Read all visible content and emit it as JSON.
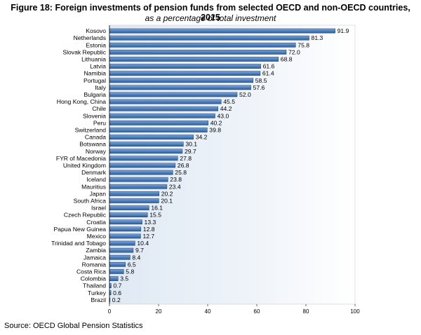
{
  "header": {
    "title": "Figure 18: Foreign investments of pension funds from selected OECD and non-OECD countries, 2015",
    "subtitle": "as a percentage of total investment"
  },
  "footer": {
    "source": "Source: OECD Global Pension Statistics"
  },
  "chart_data": {
    "type": "bar",
    "orientation": "horizontal",
    "title": "Figure 18: Foreign investments of pension funds from selected OECD and non-OECD countries, 2015",
    "subtitle": "as a percentage of total investment",
    "xlim": [
      0,
      100
    ],
    "xticks": [
      0,
      20,
      40,
      60,
      80,
      100
    ],
    "grid": false,
    "colors": {
      "bar": "#4f81bd",
      "bar_edge": "#1f3d6b",
      "plot_bg": "#dfe9f4"
    },
    "categories": [
      "Kosovo",
      "Netherlands",
      "Estonia",
      "Slovak Republic",
      "Lithuania",
      "Latvia",
      "Namibia",
      "Portugal",
      "Italy",
      "Bulgaria",
      "Hong Kong, China",
      "Chile",
      "Slovenia",
      "Peru",
      "Switzerland",
      "Canada",
      "Botswana",
      "Norway",
      "FYR of Macedonia",
      "United Kingdom",
      "Denmark",
      "Iceland",
      "Mauritius",
      "Japan",
      "South Africa",
      "Israel",
      "Czech Republic",
      "Croatia",
      "Papua New Guinea",
      "Mexico",
      "Trinidad and Tobago",
      "Zambia",
      "Jamaica",
      "Romania",
      "Costa Rica",
      "Colombia",
      "Thailand",
      "Turkey",
      "Brazil"
    ],
    "values": [
      91.9,
      81.3,
      75.8,
      72.0,
      68.8,
      61.6,
      61.4,
      58.5,
      57.6,
      52.0,
      45.5,
      44.2,
      43.0,
      40.2,
      39.8,
      34.2,
      30.1,
      29.7,
      27.8,
      26.8,
      25.8,
      23.8,
      23.4,
      20.2,
      20.1,
      16.1,
      15.5,
      13.3,
      12.8,
      12.7,
      10.4,
      9.7,
      8.4,
      6.5,
      5.8,
      3.5,
      0.7,
      0.6,
      0.2
    ],
    "labels": [
      "91.9",
      "81.3",
      "75.8",
      "72.0",
      "68.8",
      "61.6",
      "61.4",
      "58.5",
      "57.6",
      "52.0",
      "45.5",
      "44.2",
      "43.0",
      "40.2",
      "39.8",
      "34.2",
      "30.1",
      "29.7",
      "27.8",
      "26.8",
      "25.8",
      "23.8",
      "23.4",
      "20.2",
      "20.1",
      "16.1",
      "15.5",
      "13.3",
      "12.8",
      "12.7",
      "10.4",
      "9.7",
      "8.4",
      "6.5",
      "5.8",
      "3.5",
      "0.7",
      "0.6",
      "0.2"
    ]
  }
}
